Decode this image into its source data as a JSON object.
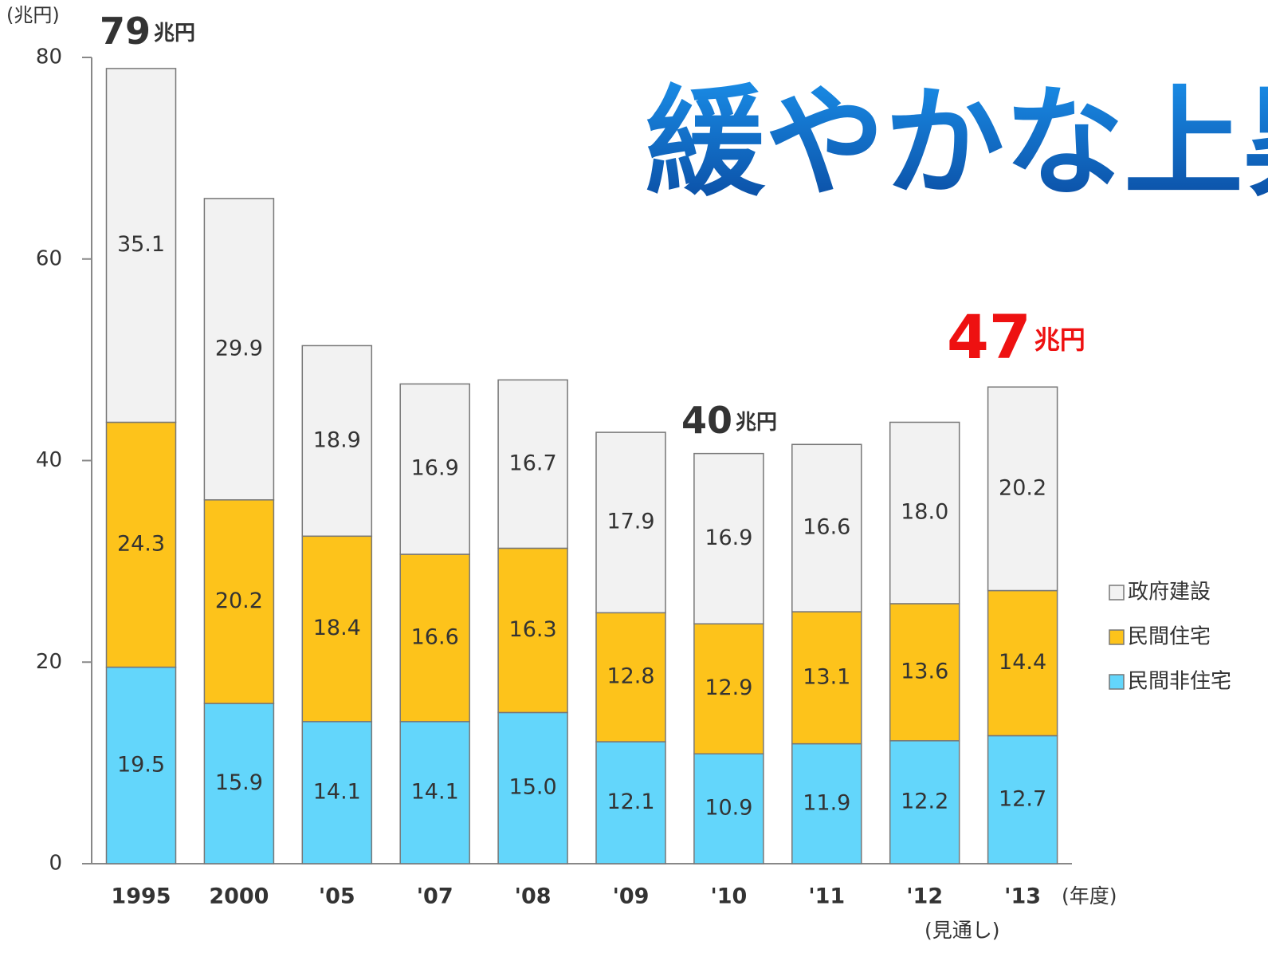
{
  "chart_data": {
    "type": "stacked_bar",
    "title": "緩やかな上昇",
    "y_unit": "(兆円)",
    "x_unit": "(年度)",
    "note": "(見通し)",
    "categories": [
      "1995",
      "2000",
      "'05",
      "'07",
      "'08",
      "'09",
      "'10",
      "'11",
      "'12",
      "'13"
    ],
    "series": [
      {
        "name": "民間非住宅",
        "color": "#63d6fb",
        "values": [
          19.5,
          15.9,
          14.1,
          14.1,
          15.0,
          12.1,
          10.9,
          11.9,
          12.2,
          12.7
        ],
        "value_labels": [
          "19.5",
          "15.9",
          "14.1",
          "14.1",
          "15.0",
          "12.1",
          "10.9",
          "11.9",
          "12.2",
          "12.7"
        ]
      },
      {
        "name": "民間住宅",
        "color": "#fdc31b",
        "values": [
          24.3,
          20.2,
          18.4,
          16.6,
          16.3,
          12.8,
          12.9,
          13.1,
          13.6,
          14.4
        ],
        "value_labels": [
          "24.3",
          "20.2",
          "18.4",
          "16.6",
          "16.3",
          "12.8",
          "12.9",
          "13.1",
          "13.6",
          "14.4"
        ]
      },
      {
        "name": "政府建設",
        "color": "#f2f2f2",
        "values": [
          35.1,
          29.9,
          18.9,
          16.9,
          16.7,
          17.9,
          16.9,
          16.6,
          18.0,
          20.2
        ],
        "value_labels": [
          "35.1",
          "29.9",
          "18.9",
          "16.9",
          "16.7",
          "17.9",
          "16.9",
          "16.6",
          "18.0",
          "20.2"
        ]
      }
    ],
    "annotations": [
      {
        "number": "79",
        "unit": "兆円",
        "color": "#333333"
      },
      {
        "number": "40",
        "unit": "兆円",
        "color": "#333333"
      },
      {
        "number": "47",
        "unit": "兆円",
        "color": "#ee1111"
      }
    ],
    "ylim": [
      0,
      80
    ],
    "yticks": [
      0,
      20,
      40,
      60,
      80
    ],
    "legend": "right"
  }
}
